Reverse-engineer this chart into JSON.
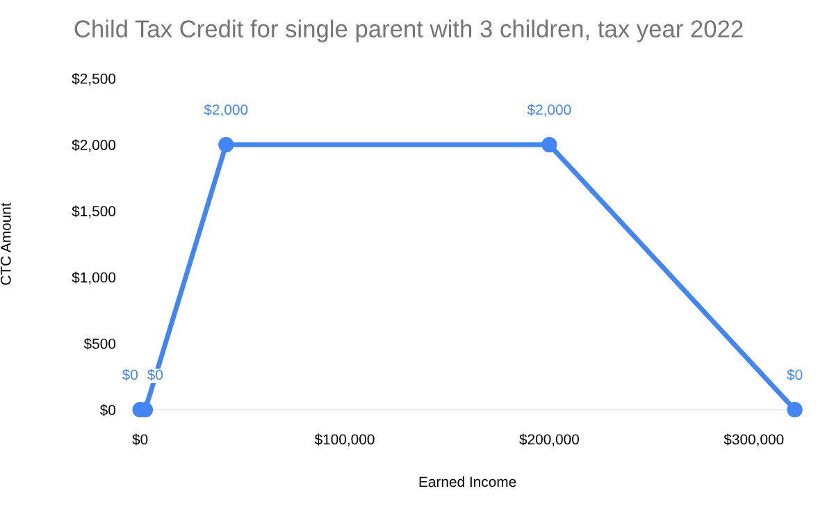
{
  "chart_data": {
    "type": "line",
    "title": "Child Tax Credit for single parent with 3 children, tax year 2022",
    "xlabel": "Earned Income",
    "ylabel": "CTC Amount",
    "x": [
      0,
      2500,
      42000,
      200000,
      320000
    ],
    "series": [
      {
        "color": "#4285f4",
        "values": [
          0,
          0,
          2000,
          2000,
          0
        ]
      }
    ],
    "xlim": [
      0,
      320000
    ],
    "value_labels": [
      "$0",
      "$0",
      "$2,000",
      "$2,000",
      "$0"
    ],
    "xticks": [
      {
        "value": 0,
        "label": "$0"
      },
      {
        "value": 100000,
        "label": "$100,000"
      },
      {
        "value": 200000,
        "label": "$200,000"
      },
      {
        "value": 300000,
        "label": "$300,000"
      }
    ],
    "ylim": [
      0,
      2500
    ],
    "yticks": [
      {
        "value": 0,
        "label": "$0"
      },
      {
        "value": 500,
        "label": "$500"
      },
      {
        "value": 1000,
        "label": "$1,000"
      },
      {
        "value": 1500,
        "label": "$1,500"
      },
      {
        "value": 2000,
        "label": "$2,000"
      },
      {
        "value": 2500,
        "label": "$2,500"
      }
    ],
    "marker": "circle",
    "line_style": "solid",
    "grid": false,
    "legend": false
  }
}
